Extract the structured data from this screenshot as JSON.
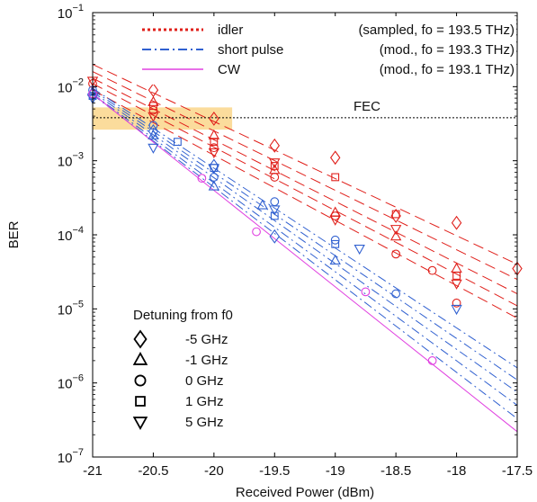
{
  "chart_data": {
    "type": "scatter",
    "xlabel": "Received Power (dBm)",
    "ylabel": "BER",
    "xlim": [
      -21,
      -17.5
    ],
    "ylim_log10": [
      -7,
      -1
    ],
    "log_y": true,
    "x_ticks": [
      "-21",
      "-20.5",
      "-20",
      "-19.5",
      "-19",
      "-18.5",
      "-18",
      "-17.5"
    ],
    "y_ticks": [
      {
        "base": "10",
        "exp": "−1",
        "log": -1
      },
      {
        "base": "10",
        "exp": "−2",
        "log": -2
      },
      {
        "base": "10",
        "exp": "−3",
        "log": -3
      },
      {
        "base": "10",
        "exp": "−4",
        "log": -4
      },
      {
        "base": "10",
        "exp": "−5",
        "log": -5
      },
      {
        "base": "10",
        "exp": "−6",
        "log": -6
      },
      {
        "base": "10",
        "exp": "−7",
        "log": -7
      }
    ],
    "fec": {
      "label": "FEC",
      "ber": 0.0038
    },
    "legend": {
      "position": "top-right",
      "entries": [
        {
          "name": "idler",
          "desc": "(sampled, fo = 193.5 THz)",
          "color": "#e0201b",
          "style": "dotted"
        },
        {
          "name": "short pulse",
          "desc": "(mod., fo = 193.3 THz)",
          "color": "#3060d0",
          "style": "dashdot"
        },
        {
          "name": "CW",
          "desc": "(mod., fo = 193.1 THz)",
          "color": "#e040e0",
          "style": "solid"
        }
      ]
    },
    "detuning_legend": {
      "title": "Detuning from f0",
      "items": [
        {
          "marker": "diamond",
          "label": "-5 GHz"
        },
        {
          "marker": "triangle-up",
          "label": "-1 GHz"
        },
        {
          "marker": "circle",
          "label": "0 GHz"
        },
        {
          "marker": "square",
          "label": "1 GHz"
        },
        {
          "marker": "triangle-down",
          "label": "5 GHz"
        }
      ]
    },
    "fit_lines": [
      {
        "color": "#e0201b",
        "style": "dashed",
        "x": [
          -21,
          -17.5
        ],
        "y": [
          0.02,
          4e-05
        ]
      },
      {
        "color": "#e0201b",
        "style": "dashed",
        "x": [
          -21,
          -17.5
        ],
        "y": [
          0.016,
          2.5e-05
        ]
      },
      {
        "color": "#e0201b",
        "style": "dashed",
        "x": [
          -21,
          -17.5
        ],
        "y": [
          0.013,
          1.6e-05
        ]
      },
      {
        "color": "#e0201b",
        "style": "dashed",
        "x": [
          -21,
          -17.5
        ],
        "y": [
          0.011,
          1.1e-05
        ]
      },
      {
        "color": "#e0201b",
        "style": "dashed",
        "x": [
          -21,
          -17.5
        ],
        "y": [
          0.009,
          7.5e-06
        ]
      },
      {
        "color": "#3060d0",
        "style": "dashdot",
        "x": [
          -21,
          -17.5
        ],
        "y": [
          0.0095,
          1.6e-06
        ]
      },
      {
        "color": "#3060d0",
        "style": "dashdot",
        "x": [
          -21,
          -17.5
        ],
        "y": [
          0.009,
          1.1e-06
        ]
      },
      {
        "color": "#3060d0",
        "style": "dashdot",
        "x": [
          -21,
          -17.5
        ],
        "y": [
          0.0085,
          7.5e-07
        ]
      },
      {
        "color": "#3060d0",
        "style": "dashdot",
        "x": [
          -21,
          -17.5
        ],
        "y": [
          0.008,
          5e-07
        ]
      },
      {
        "color": "#3060d0",
        "style": "dashdot",
        "x": [
          -21,
          -17.5
        ],
        "y": [
          0.0078,
          3.3e-07
        ]
      },
      {
        "color": "#e040e0",
        "style": "solid",
        "x": [
          -21,
          -17.5
        ],
        "y": [
          0.008,
          2.2e-07
        ]
      }
    ],
    "series": [
      {
        "name": "idler",
        "color": "#e0201b",
        "points": [
          {
            "m": "diamond",
            "x": -20.5,
            "y": 0.009
          },
          {
            "m": "diamond",
            "x": -20.0,
            "y": 0.0037
          },
          {
            "m": "diamond",
            "x": -19.5,
            "y": 0.0016
          },
          {
            "m": "diamond",
            "x": -19.0,
            "y": 0.0011
          },
          {
            "m": "diamond",
            "x": -18.5,
            "y": 0.00018
          },
          {
            "m": "diamond",
            "x": -18.0,
            "y": 0.000145
          },
          {
            "m": "diamond",
            "x": -17.5,
            "y": 3.5e-05
          },
          {
            "m": "triangle-up",
            "x": -20.5,
            "y": 0.0062
          },
          {
            "m": "triangle-up",
            "x": -20.0,
            "y": 0.0022
          },
          {
            "m": "triangle-up",
            "x": -19.5,
            "y": 0.00075
          },
          {
            "m": "triangle-up",
            "x": -19.0,
            "y": 0.0002
          },
          {
            "m": "triangle-up",
            "x": -18.5,
            "y": 9.5e-05
          },
          {
            "m": "triangle-up",
            "x": -18.0,
            "y": 3.5e-05
          },
          {
            "m": "circle",
            "x": -21.0,
            "y": 0.011
          },
          {
            "m": "circle",
            "x": -20.5,
            "y": 0.0048
          },
          {
            "m": "circle",
            "x": -20.0,
            "y": 0.0015
          },
          {
            "m": "circle",
            "x": -19.5,
            "y": 0.0006
          },
          {
            "m": "circle",
            "x": -19.0,
            "y": 0.00018
          },
          {
            "m": "circle",
            "x": -18.5,
            "y": 5.5e-05
          },
          {
            "m": "circle",
            "x": -18.2,
            "y": 3.3e-05
          },
          {
            "m": "circle",
            "x": -18.0,
            "y": 1.2e-05
          },
          {
            "m": "square",
            "x": -20.5,
            "y": 0.0055
          },
          {
            "m": "square",
            "x": -20.0,
            "y": 0.0018
          },
          {
            "m": "square",
            "x": -19.5,
            "y": 0.00085
          },
          {
            "m": "square",
            "x": -19.0,
            "y": 0.0006
          },
          {
            "m": "square",
            "x": -18.5,
            "y": 0.00019
          },
          {
            "m": "square",
            "x": -18.0,
            "y": 2.8e-05
          },
          {
            "m": "triangle-down",
            "x": -21.0,
            "y": 0.012
          },
          {
            "m": "triangle-down",
            "x": -20.5,
            "y": 0.004
          },
          {
            "m": "triangle-down",
            "x": -20.0,
            "y": 0.0013
          },
          {
            "m": "triangle-down",
            "x": -19.5,
            "y": 0.00095
          },
          {
            "m": "triangle-down",
            "x": -19.0,
            "y": 0.00016
          },
          {
            "m": "triangle-down",
            "x": -18.5,
            "y": 0.00012
          },
          {
            "m": "triangle-down",
            "x": -18.0,
            "y": 2.2e-05
          }
        ]
      },
      {
        "name": "short pulse",
        "color": "#3060d0",
        "points": [
          {
            "m": "diamond",
            "x": -21.0,
            "y": 0.008
          },
          {
            "m": "diamond",
            "x": -20.5,
            "y": 0.0025
          },
          {
            "m": "diamond",
            "x": -20.0,
            "y": 0.00085
          },
          {
            "m": "diamond",
            "x": -19.5,
            "y": 9.5e-05
          },
          {
            "m": "triangle-up",
            "x": -21.0,
            "y": 0.0085
          },
          {
            "m": "triangle-up",
            "x": -20.5,
            "y": 0.0022
          },
          {
            "m": "triangle-up",
            "x": -20.0,
            "y": 0.00045
          },
          {
            "m": "triangle-up",
            "x": -19.6,
            "y": 0.00025
          },
          {
            "m": "triangle-up",
            "x": -19.0,
            "y": 4.5e-05
          },
          {
            "m": "circle",
            "x": -21.0,
            "y": 0.009
          },
          {
            "m": "circle",
            "x": -20.5,
            "y": 0.003
          },
          {
            "m": "circle",
            "x": -20.0,
            "y": 0.0006
          },
          {
            "m": "circle",
            "x": -19.5,
            "y": 0.00028
          },
          {
            "m": "circle",
            "x": -19.0,
            "y": 8.5e-05
          },
          {
            "m": "circle",
            "x": -18.5,
            "y": 1.6e-05
          },
          {
            "m": "square",
            "x": -21.0,
            "y": 0.0075
          },
          {
            "m": "square",
            "x": -20.3,
            "y": 0.0018
          },
          {
            "m": "square",
            "x": -20.0,
            "y": 0.0008
          },
          {
            "m": "square",
            "x": -19.5,
            "y": 0.00018
          },
          {
            "m": "square",
            "x": -19.0,
            "y": 7.5e-05
          },
          {
            "m": "triangle-down",
            "x": -21.0,
            "y": 0.007
          },
          {
            "m": "triangle-down",
            "x": -20.5,
            "y": 0.0015
          },
          {
            "m": "triangle-down",
            "x": -20.0,
            "y": 0.0008
          },
          {
            "m": "triangle-down",
            "x": -19.5,
            "y": 0.00022
          },
          {
            "m": "triangle-down",
            "x": -18.8,
            "y": 6.5e-05
          },
          {
            "m": "triangle-down",
            "x": -18.0,
            "y": 1e-05
          }
        ]
      },
      {
        "name": "CW",
        "color": "#e040e0",
        "points": [
          {
            "m": "circle",
            "x": -21.0,
            "y": 0.008
          },
          {
            "m": "circle",
            "x": -20.1,
            "y": 0.00058
          },
          {
            "m": "circle",
            "x": -19.65,
            "y": 0.00011
          },
          {
            "m": "circle",
            "x": -18.75,
            "y": 1.7e-05
          },
          {
            "m": "circle",
            "x": -18.2,
            "y": 2e-06
          }
        ]
      }
    ]
  }
}
